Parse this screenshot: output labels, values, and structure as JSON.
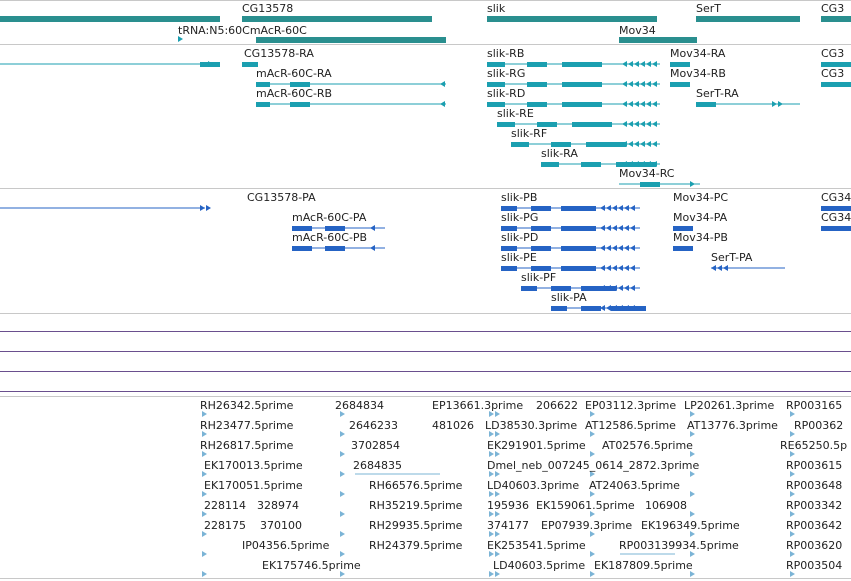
{
  "colors": {
    "gene": "#2a8f8f",
    "transcript": "#1b9fb0",
    "protein": "#2563c4",
    "est": "#7bb4d6",
    "divider": "#c8c8c8",
    "track_line": "#6a4f8e"
  },
  "gene_track": {
    "labels": [
      "CG13578",
      "tRNA:N5:60CmAcR-60C",
      "slik",
      "SerT",
      "Mov34",
      "CG3"
    ]
  },
  "transcript_track": {
    "labels": [
      "CG13578-RA",
      "mAcR-60C-RA",
      "mAcR-60C-RB",
      "slik-RB",
      "slik-RG",
      "slik-RD",
      "slik-RE",
      "slik-RF",
      "slik-RA",
      "Mov34-RA",
      "Mov34-RB",
      "SerT-RA",
      "Mov34-RC",
      "CG3",
      "CG3"
    ]
  },
  "protein_track": {
    "labels": [
      "CG13578-PA",
      "mAcR-60C-PA",
      "mAcR-60C-PB",
      "slik-PB",
      "slik-PG",
      "slik-PD",
      "slik-PE",
      "slik-PF",
      "slik-PA",
      "Mov34-PC",
      "Mov34-PA",
      "Mov34-PB",
      "SerT-PA",
      "CG34",
      "CG34"
    ]
  },
  "est_track": {
    "labels": [
      "RH26342.5prime",
      "RH23477.5prime",
      "RH26817.5prime",
      "EK170013.5prime",
      "EK170051.5prime",
      "228114",
      "328974",
      "228175",
      "370100",
      "IP04356.5prime",
      "EK175746.5prime",
      "2684834",
      "2646233",
      "3702854",
      "2684835",
      "RH66576.5prime",
      "RH35219.5prime",
      "RH29935.5prime",
      "RH24379.5prime",
      "EP13661.3prime",
      "206622",
      "EP03112.3prime",
      "LP20261.3prime",
      "481026",
      "LD38530.3prime",
      "AT12586.5prime",
      "AT13776.3prime",
      "EK291901.5prime",
      "AT02576.5prime",
      "Dmel_neb_007245_0614_2872.3prime",
      "LD40603.3prime",
      "AT24063.5prime",
      "195936",
      "EK159061.5prime",
      "106908",
      "374177",
      "EP07939.3prime",
      "EK196349.5prime",
      "EK253541.5prime",
      "RP003139934.5prime",
      "LD40603.5prime",
      "EK187809.5prime",
      "RP003165",
      "RP00362",
      "RE65250.5p",
      "RP003615",
      "RP003648",
      "RP003342",
      "RP003642",
      "RP003620",
      "RP003504"
    ]
  }
}
